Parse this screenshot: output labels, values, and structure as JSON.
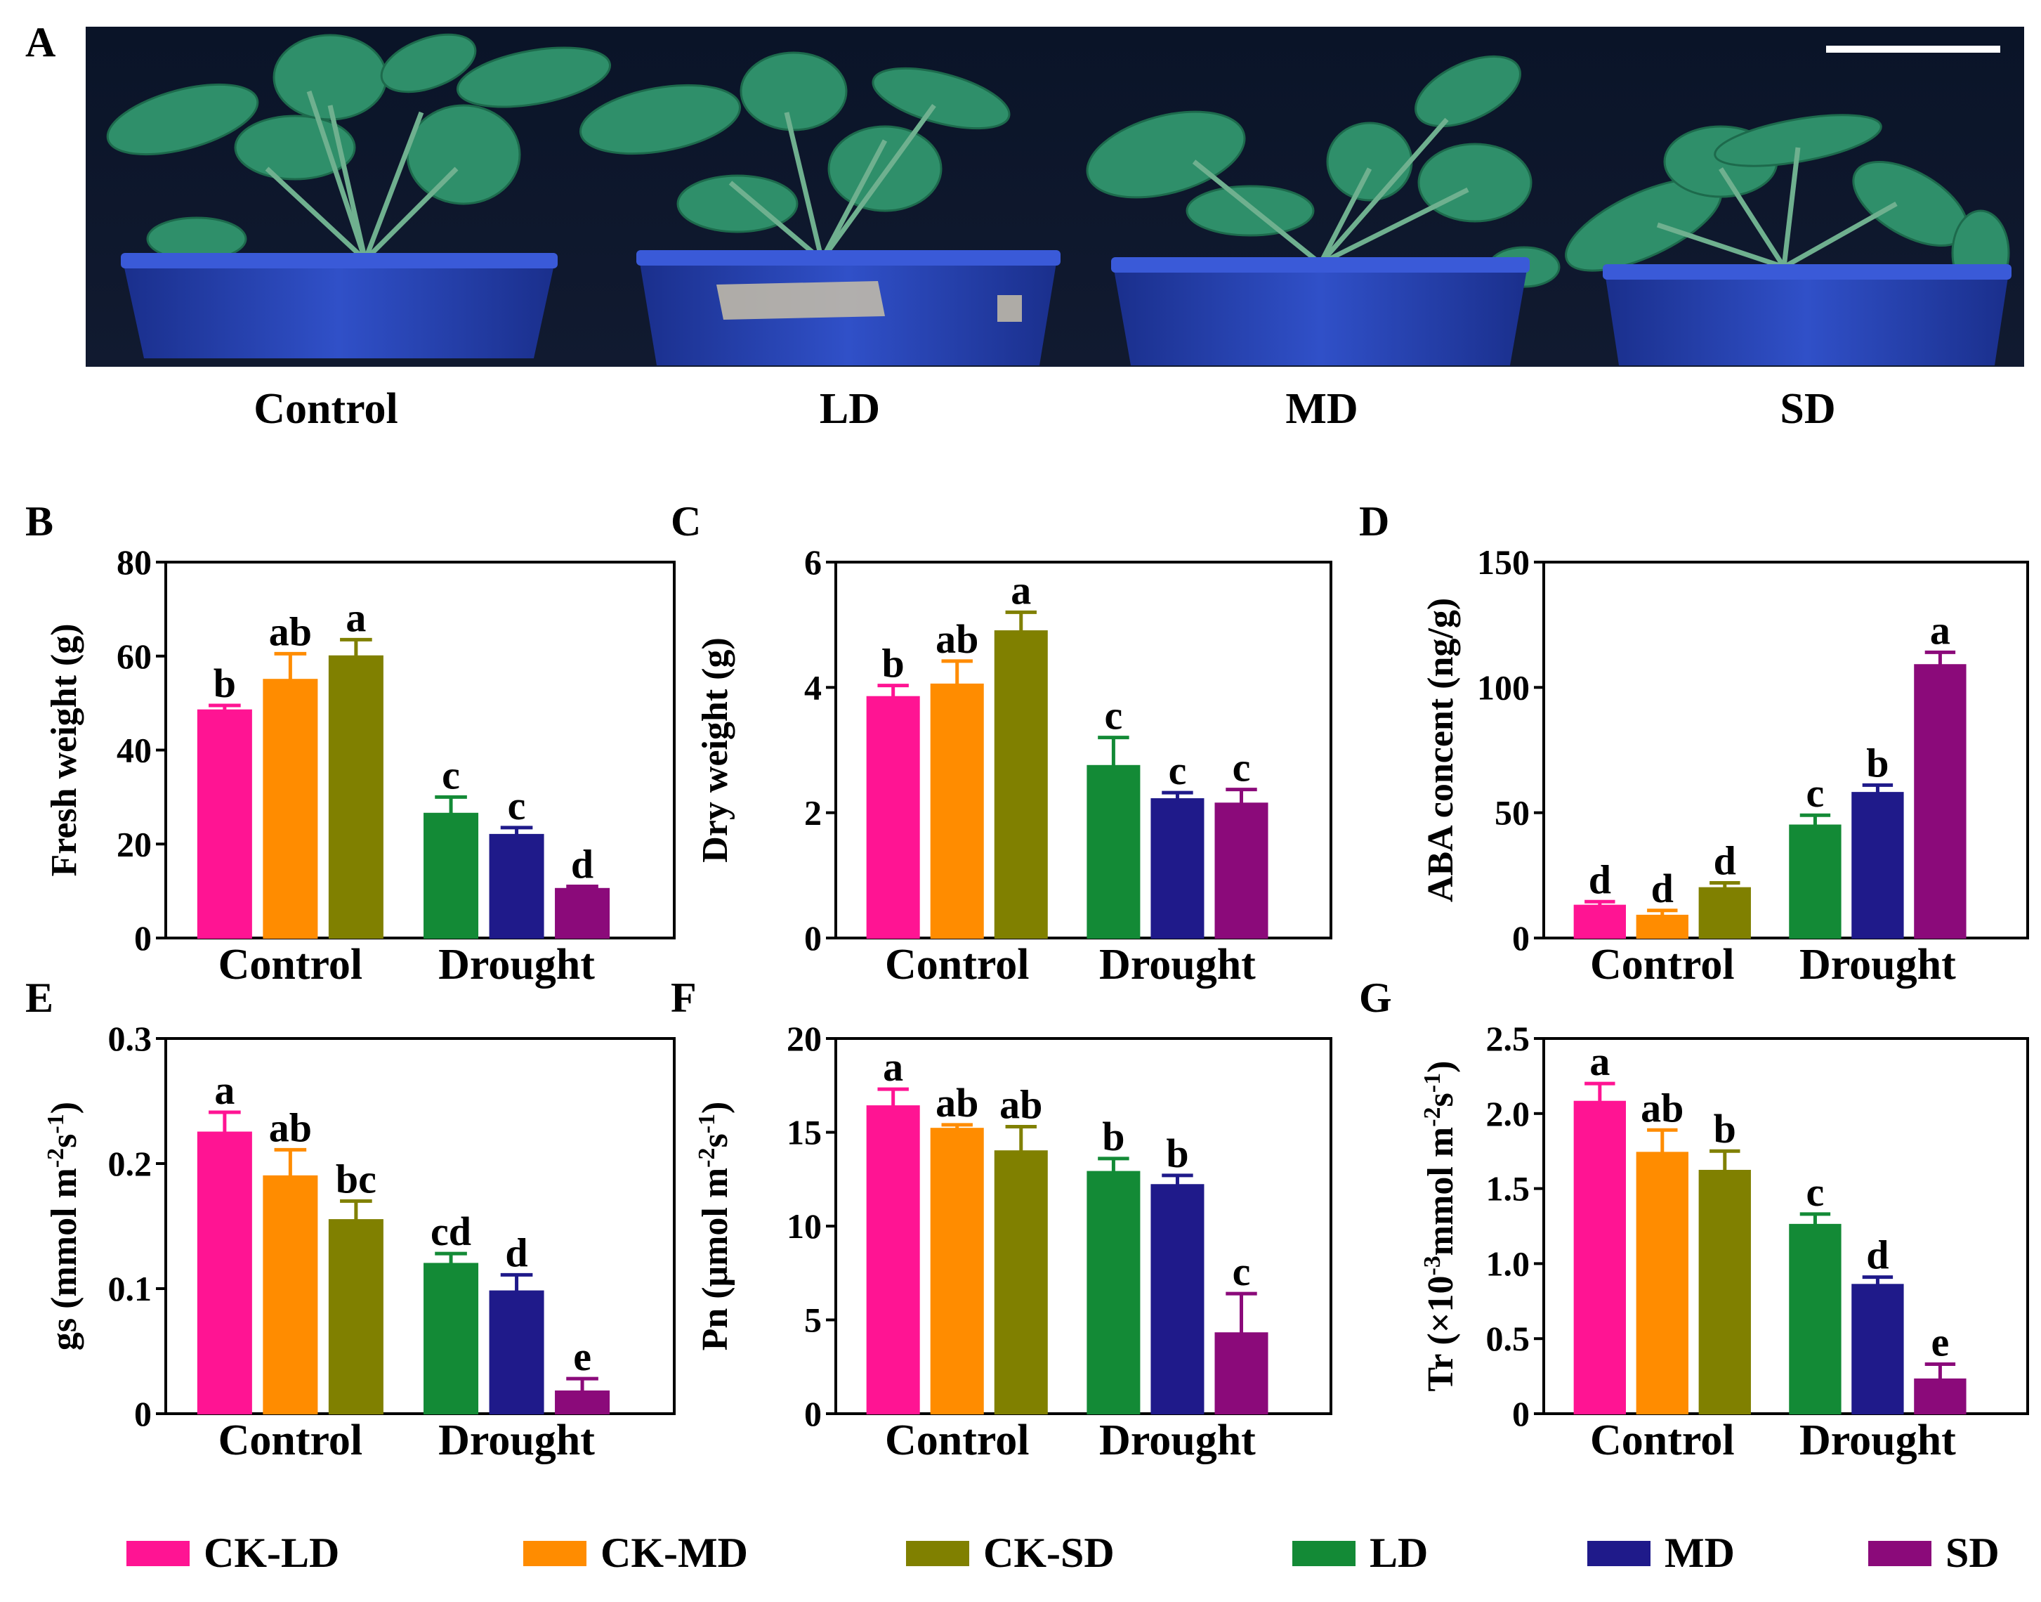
{
  "figure": {
    "panel_a": {
      "letter": "A",
      "labels": [
        "Control",
        "LD",
        "MD",
        "SD"
      ]
    }
  },
  "legend": [
    {
      "label": "CK-LD",
      "color": "#ff1493"
    },
    {
      "label": "CK-MD",
      "color": "#ff8c00"
    },
    {
      "label": "CK-SD",
      "color": "#808000"
    },
    {
      "label": "LD",
      "color": "#138a36"
    },
    {
      "label": "MD",
      "color": "#1f1a8a"
    },
    {
      "label": "SD",
      "color": "#8b0a7a"
    }
  ],
  "chart_data": [
    {
      "panel": "B",
      "type": "bar",
      "ylabel": "Fresh weight (g)",
      "groups": [
        "Control",
        "Drought"
      ],
      "ylim": [
        0,
        80
      ],
      "yticks": [
        "0",
        "20",
        "40",
        "60",
        "80"
      ],
      "values": [
        48.5,
        55,
        60,
        26.5,
        22,
        10.5
      ],
      "errors": [
        1,
        5.5,
        3.5,
        3.5,
        1.5,
        0.5
      ],
      "letters": [
        "b",
        "ab",
        "a",
        "c",
        "c",
        "d"
      ]
    },
    {
      "panel": "C",
      "type": "bar",
      "ylabel": "Dry weight (g)",
      "groups": [
        "Control",
        "Drought"
      ],
      "ylim": [
        0,
        6
      ],
      "yticks": [
        "0",
        "2",
        "4",
        "6"
      ],
      "values": [
        3.85,
        4.05,
        4.9,
        2.75,
        2.22,
        2.15
      ],
      "errors": [
        0.18,
        0.37,
        0.3,
        0.45,
        0.1,
        0.22
      ],
      "letters": [
        "b",
        "ab",
        "a",
        "c",
        "c",
        "c"
      ]
    },
    {
      "panel": "D",
      "type": "bar",
      "ylabel": "ABA concent (ng/g)",
      "groups": [
        "Control",
        "Drought"
      ],
      "ylim": [
        0,
        150
      ],
      "yticks": [
        "0",
        "50",
        "100",
        "150"
      ],
      "values": [
        13,
        9,
        20,
        45,
        58,
        109
      ],
      "errors": [
        1.5,
        2,
        2,
        4,
        3,
        5
      ],
      "letters": [
        "d",
        "d",
        "d",
        "c",
        "b",
        "a"
      ]
    },
    {
      "panel": "E",
      "type": "bar",
      "ylabel": "gs (mmol m-2s-1)",
      "groups": [
        "Control",
        "Drought"
      ],
      "ylim": [
        0,
        0.3
      ],
      "yticks": [
        "0",
        "0.1",
        "0.2",
        "0.3"
      ],
      "values": [
        0.225,
        0.19,
        0.155,
        0.12,
        0.098,
        0.018
      ],
      "errors": [
        0.016,
        0.021,
        0.015,
        0.008,
        0.013,
        0.01
      ],
      "letters": [
        "a",
        "ab",
        "bc",
        "cd",
        "d",
        "e"
      ]
    },
    {
      "panel": "F",
      "type": "bar",
      "ylabel": "Pn (μmol m-2s-1)",
      "groups": [
        "Control",
        "Drought"
      ],
      "ylim": [
        0,
        20
      ],
      "yticks": [
        "0",
        "5",
        "10",
        "15",
        "20"
      ],
      "values": [
        16.4,
        15.2,
        14,
        12.9,
        12.2,
        4.3
      ],
      "errors": [
        0.9,
        0.2,
        1.3,
        0.7,
        0.5,
        2.1
      ],
      "letters": [
        "a",
        "ab",
        "ab",
        "b",
        "b",
        "c"
      ]
    },
    {
      "panel": "G",
      "type": "bar",
      "ylabel": "Tr (×10-3mmol m-2s-1)",
      "groups": [
        "Control",
        "Drought"
      ],
      "ylim": [
        0,
        2.5
      ],
      "yticks": [
        "0",
        "0.5",
        "1.0",
        "1.5",
        "2.0",
        "2.5"
      ],
      "values": [
        2.08,
        1.74,
        1.62,
        1.26,
        0.86,
        0.23
      ],
      "errors": [
        0.12,
        0.15,
        0.13,
        0.07,
        0.05,
        0.1
      ],
      "letters": [
        "a",
        "ab",
        "b",
        "c",
        "d",
        "e"
      ]
    }
  ]
}
